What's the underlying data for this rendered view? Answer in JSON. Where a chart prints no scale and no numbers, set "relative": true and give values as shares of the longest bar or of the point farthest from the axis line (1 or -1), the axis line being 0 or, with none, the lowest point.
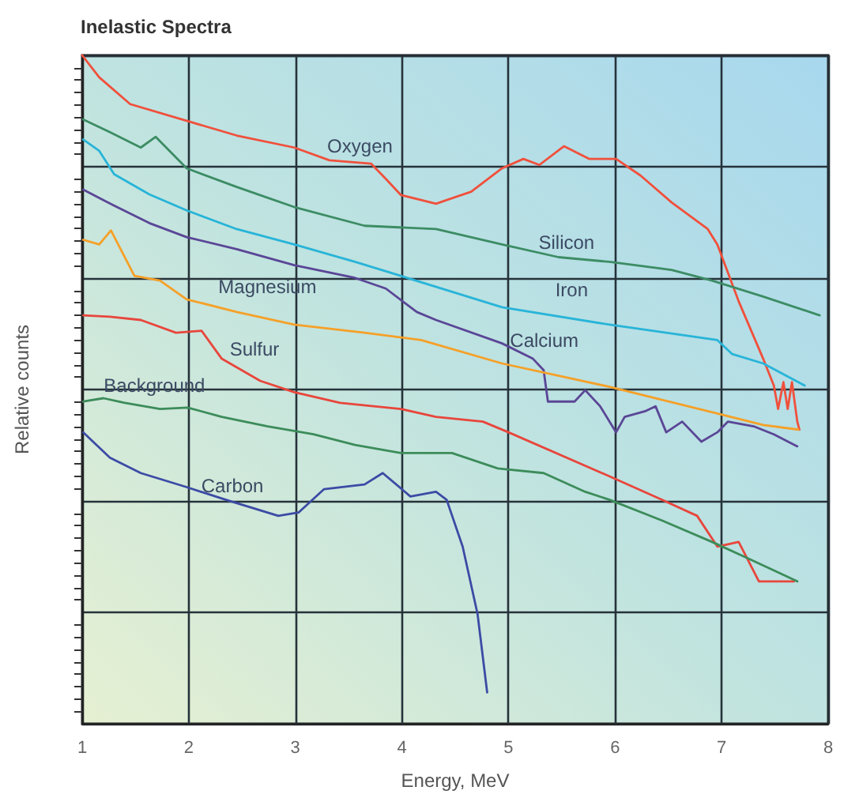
{
  "chart_data": {
    "type": "line",
    "title": "Inelastic Spectra",
    "xlabel": "Energy, MeV",
    "ylabel": "Relative counts",
    "relative": true,
    "xlim": [
      1,
      8
    ],
    "xticks": [
      1,
      2,
      3,
      4,
      5,
      6,
      7,
      8
    ],
    "grid": true,
    "legend": false,
    "marker": "none",
    "line_style": "solid",
    "series": [
      {
        "name": "Oxygen",
        "color": "#f0503c",
        "x": [
          1.0,
          1.16,
          1.45,
          1.98,
          2.45,
          2.99,
          3.32,
          3.71,
          3.85,
          3.99,
          4.32,
          4.65,
          4.94,
          5.14,
          5.29,
          5.52,
          5.76,
          6.01,
          6.24,
          6.53,
          6.87,
          6.96,
          7.16,
          7.39,
          7.49,
          7.53,
          7.58,
          7.62,
          7.66,
          7.71,
          7.73
        ],
        "values": [
          1.0,
          0.967,
          0.927,
          0.902,
          0.88,
          0.862,
          0.843,
          0.838,
          0.815,
          0.791,
          0.778,
          0.796,
          0.831,
          0.845,
          0.836,
          0.864,
          0.845,
          0.845,
          0.82,
          0.78,
          0.74,
          0.717,
          0.632,
          0.546,
          0.506,
          0.471,
          0.511,
          0.471,
          0.511,
          0.452,
          0.44
        ]
      },
      {
        "name": "Silicon",
        "color": "#3c8c64",
        "x": [
          1.01,
          1.26,
          1.55,
          1.69,
          1.98,
          2.45,
          2.99,
          3.65,
          4.32,
          4.94,
          5.47,
          5.95,
          6.53,
          6.91,
          7.39,
          7.92
        ],
        "values": [
          0.904,
          0.885,
          0.862,
          0.878,
          0.831,
          0.803,
          0.773,
          0.745,
          0.74,
          0.717,
          0.698,
          0.691,
          0.679,
          0.663,
          0.639,
          0.611
        ]
      },
      {
        "name": "Iron",
        "color": "#28b4d8",
        "x": [
          1.01,
          1.16,
          1.3,
          1.63,
          1.98,
          2.45,
          2.99,
          3.56,
          3.99,
          4.94,
          5.95,
          6.96,
          7.1,
          7.39,
          7.78
        ],
        "values": [
          0.874,
          0.857,
          0.822,
          0.792,
          0.768,
          0.74,
          0.717,
          0.691,
          0.67,
          0.623,
          0.597,
          0.574,
          0.553,
          0.539,
          0.506
        ]
      },
      {
        "name": "Calcium",
        "color": "#5a4696",
        "x": [
          1.01,
          1.3,
          1.63,
          1.98,
          2.45,
          2.99,
          3.56,
          3.85,
          4.14,
          4.32,
          4.94,
          5.23,
          5.33,
          5.37,
          5.62,
          5.72,
          5.86,
          6.01,
          6.09,
          6.29,
          6.38,
          6.48,
          6.63,
          6.81,
          6.96,
          7.06,
          7.3,
          7.49,
          7.71
        ],
        "values": [
          0.799,
          0.775,
          0.749,
          0.728,
          0.71,
          0.686,
          0.667,
          0.651,
          0.616,
          0.604,
          0.569,
          0.546,
          0.529,
          0.482,
          0.482,
          0.499,
          0.475,
          0.436,
          0.459,
          0.468,
          0.475,
          0.436,
          0.452,
          0.422,
          0.436,
          0.452,
          0.445,
          0.433,
          0.415
        ]
      },
      {
        "name": "Magnesium",
        "color": "#f5a028",
        "x": [
          1.01,
          1.16,
          1.27,
          1.49,
          1.73,
          1.98,
          2.45,
          2.99,
          3.65,
          4.18,
          4.94,
          5.95,
          6.96,
          7.39,
          7.72
        ],
        "values": [
          0.724,
          0.717,
          0.738,
          0.67,
          0.663,
          0.635,
          0.616,
          0.597,
          0.585,
          0.574,
          0.539,
          0.504,
          0.464,
          0.447,
          0.44
        ]
      },
      {
        "name": "Sulfur",
        "color": "#e8463c",
        "x": [
          1.01,
          1.26,
          1.55,
          1.88,
          2.12,
          2.31,
          2.67,
          2.99,
          3.42,
          3.99,
          4.32,
          4.76,
          5.0,
          5.95,
          6.44,
          6.77,
          6.96,
          7.16,
          7.35,
          7.68
        ],
        "values": [
          0.611,
          0.609,
          0.604,
          0.585,
          0.588,
          0.546,
          0.513,
          0.496,
          0.48,
          0.471,
          0.459,
          0.452,
          0.436,
          0.37,
          0.335,
          0.311,
          0.265,
          0.272,
          0.213,
          0.213
        ]
      },
      {
        "name": "Background",
        "color": "#3c8c5a",
        "x": [
          1.01,
          1.2,
          1.4,
          1.73,
          1.99,
          2.31,
          2.74,
          3.17,
          3.56,
          3.99,
          4.47,
          4.9,
          5.33,
          5.72,
          5.95,
          6.44,
          6.91,
          7.24,
          7.71
        ],
        "values": [
          0.482,
          0.487,
          0.48,
          0.471,
          0.473,
          0.459,
          0.445,
          0.433,
          0.417,
          0.405,
          0.405,
          0.382,
          0.375,
          0.347,
          0.335,
          0.304,
          0.272,
          0.248,
          0.213
        ]
      },
      {
        "name": "Carbon",
        "color": "#3c4ba5",
        "x": [
          1.01,
          1.26,
          1.55,
          1.98,
          2.35,
          2.84,
          3.03,
          3.27,
          3.65,
          3.82,
          4.08,
          4.32,
          4.42,
          4.57,
          4.71,
          4.8
        ],
        "values": [
          0.436,
          0.398,
          0.375,
          0.354,
          0.335,
          0.311,
          0.316,
          0.351,
          0.358,
          0.375,
          0.34,
          0.347,
          0.335,
          0.265,
          0.164,
          0.047
        ]
      }
    ]
  }
}
